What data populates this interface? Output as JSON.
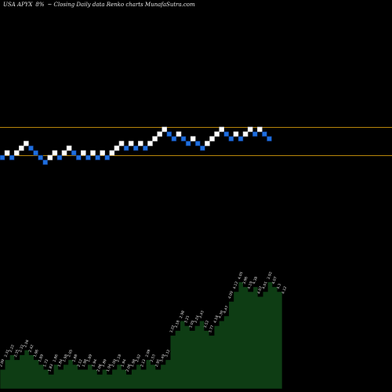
{
  "header": {
    "ticker": "USA APYX",
    "change": "8%",
    "tail": "~ Closing Daily data  Renko  charts MunafaSutra.com"
  },
  "colors": {
    "background": "#000000",
    "up_brick": "#ffffff",
    "down_brick": "#1e6fe0",
    "down_brick_border": "#0a2a66",
    "reference_line": "#b8860b",
    "volume_fill": "#0e3d14",
    "volume_line": "#000000",
    "label": "#e0e0e0"
  },
  "chart_data": [
    {
      "type": "renko",
      "bricks": [
        {
          "x": 0,
          "level": 5,
          "dir": "down"
        },
        {
          "x": 1,
          "level": 6,
          "dir": "up"
        },
        {
          "x": 2,
          "level": 5,
          "dir": "down"
        },
        {
          "x": 3,
          "level": 6,
          "dir": "up"
        },
        {
          "x": 4,
          "level": 7,
          "dir": "up"
        },
        {
          "x": 5,
          "level": 8,
          "dir": "up"
        },
        {
          "x": 6,
          "level": 7,
          "dir": "down"
        },
        {
          "x": 7,
          "level": 6,
          "dir": "down"
        },
        {
          "x": 8,
          "level": 5,
          "dir": "down"
        },
        {
          "x": 9,
          "level": 4,
          "dir": "down"
        },
        {
          "x": 10,
          "level": 5,
          "dir": "up"
        },
        {
          "x": 11,
          "level": 6,
          "dir": "up"
        },
        {
          "x": 12,
          "level": 5,
          "dir": "down"
        },
        {
          "x": 13,
          "level": 6,
          "dir": "up"
        },
        {
          "x": 14,
          "level": 7,
          "dir": "up"
        },
        {
          "x": 15,
          "level": 6,
          "dir": "down"
        },
        {
          "x": 16,
          "level": 5,
          "dir": "down"
        },
        {
          "x": 17,
          "level": 6,
          "dir": "up"
        },
        {
          "x": 18,
          "level": 5,
          "dir": "down"
        },
        {
          "x": 19,
          "level": 6,
          "dir": "up"
        },
        {
          "x": 20,
          "level": 5,
          "dir": "down"
        },
        {
          "x": 21,
          "level": 6,
          "dir": "up"
        },
        {
          "x": 22,
          "level": 5,
          "dir": "down"
        },
        {
          "x": 23,
          "level": 6,
          "dir": "up"
        },
        {
          "x": 24,
          "level": 7,
          "dir": "up"
        },
        {
          "x": 25,
          "level": 8,
          "dir": "up"
        },
        {
          "x": 26,
          "level": 7,
          "dir": "down"
        },
        {
          "x": 27,
          "level": 8,
          "dir": "up"
        },
        {
          "x": 28,
          "level": 7,
          "dir": "down"
        },
        {
          "x": 29,
          "level": 8,
          "dir": "up"
        },
        {
          "x": 30,
          "level": 7,
          "dir": "down"
        },
        {
          "x": 31,
          "level": 8,
          "dir": "up"
        },
        {
          "x": 32,
          "level": 9,
          "dir": "up"
        },
        {
          "x": 33,
          "level": 10,
          "dir": "up"
        },
        {
          "x": 34,
          "level": 11,
          "dir": "up"
        },
        {
          "x": 35,
          "level": 10,
          "dir": "down"
        },
        {
          "x": 36,
          "level": 9,
          "dir": "down"
        },
        {
          "x": 37,
          "level": 10,
          "dir": "up"
        },
        {
          "x": 38,
          "level": 9,
          "dir": "down"
        },
        {
          "x": 39,
          "level": 8,
          "dir": "down"
        },
        {
          "x": 40,
          "level": 9,
          "dir": "up"
        },
        {
          "x": 41,
          "level": 8,
          "dir": "down"
        },
        {
          "x": 42,
          "level": 7,
          "dir": "down"
        },
        {
          "x": 43,
          "level": 8,
          "dir": "up"
        },
        {
          "x": 44,
          "level": 9,
          "dir": "up"
        },
        {
          "x": 45,
          "level": 10,
          "dir": "up"
        },
        {
          "x": 46,
          "level": 11,
          "dir": "up"
        },
        {
          "x": 47,
          "level": 10,
          "dir": "down"
        },
        {
          "x": 48,
          "level": 9,
          "dir": "down"
        },
        {
          "x": 49,
          "level": 10,
          "dir": "up"
        },
        {
          "x": 50,
          "level": 9,
          "dir": "down"
        },
        {
          "x": 51,
          "level": 10,
          "dir": "up"
        },
        {
          "x": 52,
          "level": 11,
          "dir": "up"
        },
        {
          "x": 53,
          "level": 10,
          "dir": "down"
        },
        {
          "x": 54,
          "level": 11,
          "dir": "up"
        },
        {
          "x": 55,
          "level": 10,
          "dir": "down"
        },
        {
          "x": 56,
          "level": 9,
          "dir": "down"
        }
      ],
      "reference_levels": [
        11.5,
        5.5
      ]
    },
    {
      "type": "area",
      "values": [
        4,
        6,
        7,
        6,
        7,
        8,
        7,
        6,
        5,
        4,
        3,
        5,
        4,
        5,
        6,
        5,
        4,
        4,
        5,
        4,
        3,
        4,
        3,
        4,
        5,
        4,
        3,
        4,
        5,
        4,
        6,
        5,
        4,
        5,
        6,
        11,
        12,
        14,
        13,
        12,
        13,
        14,
        12,
        11,
        13,
        14,
        15,
        18,
        20,
        22,
        21,
        20,
        21,
        19,
        20,
        22,
        21,
        20,
        19
      ],
      "labels": [
        "2.09",
        "2.31",
        "2.22",
        "2.35",
        "2.32",
        "2.56",
        "2.42",
        "1.96",
        "1.89",
        "1.73",
        "1.83",
        "1.86",
        "1.84",
        "1.98",
        "2.05",
        "1.88",
        "2.12",
        "1.98",
        "1.89",
        "1.94",
        "2.06",
        "1.89",
        "1.94",
        "2.09",
        "2.18",
        "1.94",
        "2.06",
        "1.98",
        "2.02",
        "2.13",
        "2.09",
        "2.53",
        "2.95",
        "3.49",
        "3.12",
        "3.22",
        "3.18",
        "2.98",
        "3.21",
        "3.05",
        "3.24",
        "3.43",
        "3.52",
        "3.77",
        "4.18",
        "4.39",
        "4.47",
        "4.09",
        "4.12",
        "4.05",
        "3.96",
        "4.19",
        "4.38",
        "4.07",
        "4.01",
        "3.92",
        "4.07",
        "4.3",
        "4.12"
      ]
    }
  ]
}
